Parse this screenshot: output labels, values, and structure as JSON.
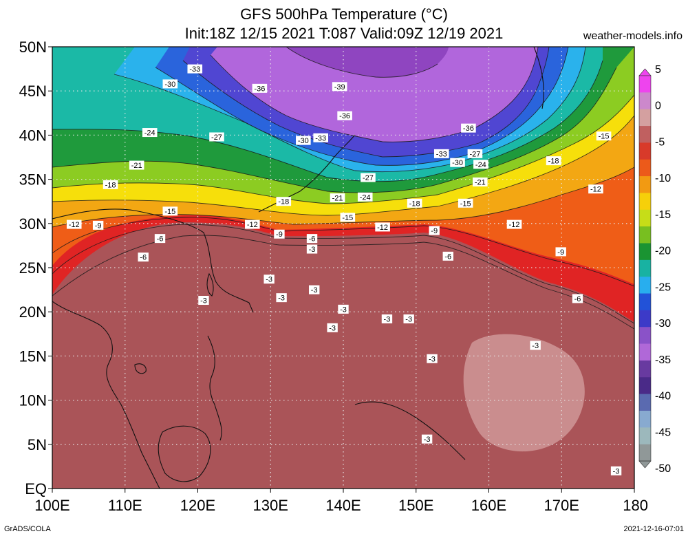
{
  "header": {
    "title_line1": "GFS 500hPa Temperature (°C)",
    "title_line2": "Init:18Z 12/15 2021 T:087 Valid:09Z 12/19 2021",
    "site": "weather-models.info"
  },
  "footer": {
    "credit": "GrADS/COLA",
    "timestamp": "2021-12-16-07:01"
  },
  "axes": {
    "lat_labels": [
      "50N",
      "45N",
      "40N",
      "35N",
      "30N",
      "25N",
      "20N",
      "15N",
      "10N",
      "5N",
      "EQ"
    ],
    "lon_labels": [
      "100E",
      "110E",
      "120E",
      "130E",
      "140E",
      "150E",
      "160E",
      "170E",
      "180"
    ]
  },
  "colorbar": {
    "labels": [
      "5",
      "0",
      "-5",
      "-10",
      "-15",
      "-20",
      "-25",
      "-30",
      "-35",
      "-40",
      "-45",
      "-50"
    ],
    "colors": [
      "#ee44ee",
      "#cc88cc",
      "#d4a0a0",
      "#c06060",
      "#d83a2a",
      "#ec5a1a",
      "#f29a12",
      "#f6d00a",
      "#c6dd18",
      "#78bf20",
      "#1a9432",
      "#18b2a2",
      "#28aeee",
      "#2252d8",
      "#3c3ac8",
      "#8a52c8",
      "#b068d8",
      "#683aa0",
      "#4a2a88",
      "#5a6ab0",
      "#88aad0",
      "#9cb8bc",
      "#909898"
    ]
  },
  "map": {
    "fields": [
      {
        "name": "temp-0",
        "color": "#d4a0a0"
      },
      {
        "name": "temp-minus3",
        "color": "#aa5458"
      },
      {
        "name": "temp-minus6",
        "color": "#e02424"
      },
      {
        "name": "temp-minus9",
        "color": "#ef5d17"
      },
      {
        "name": "temp-minus12",
        "color": "#f3a713"
      },
      {
        "name": "temp-minus15",
        "color": "#f6df0b"
      },
      {
        "name": "temp-minus18",
        "color": "#8ccc22"
      },
      {
        "name": "temp-minus21",
        "color": "#1f9a3c"
      },
      {
        "name": "temp-minus24",
        "color": "#1bb9a6"
      },
      {
        "name": "temp-minus27",
        "color": "#2ab2ec"
      },
      {
        "name": "temp-minus30",
        "color": "#2a64dc"
      },
      {
        "name": "temp-minus33",
        "color": "#5046d2"
      },
      {
        "name": "temp-minus36",
        "color": "#b166dc"
      },
      {
        "name": "temp-minus39",
        "color": "#8f45c0"
      }
    ],
    "contour_labels": [
      {
        "text": "-33",
        "lon": 119.6,
        "lat": 47.5
      },
      {
        "text": "-30",
        "lon": 116.2,
        "lat": 45.8
      },
      {
        "text": "-36",
        "lon": 128.5,
        "lat": 45.3
      },
      {
        "text": "-39",
        "lon": 139.5,
        "lat": 45.5
      },
      {
        "text": "-36",
        "lon": 140.2,
        "lat": 42.2
      },
      {
        "text": "-36",
        "lon": 157.2,
        "lat": 40.8
      },
      {
        "text": "-24",
        "lon": 113.4,
        "lat": 40.3
      },
      {
        "text": "-27",
        "lon": 122.6,
        "lat": 39.8
      },
      {
        "text": "-30",
        "lon": 134.5,
        "lat": 39.4
      },
      {
        "text": "-33",
        "lon": 136.9,
        "lat": 39.7
      },
      {
        "text": "-33",
        "lon": 153.5,
        "lat": 37.9
      },
      {
        "text": "-27",
        "lon": 158.1,
        "lat": 37.9
      },
      {
        "text": "-30",
        "lon": 155.7,
        "lat": 36.9
      },
      {
        "text": "-24",
        "lon": 158.9,
        "lat": 36.7
      },
      {
        "text": "-18",
        "lon": 168.9,
        "lat": 37.1
      },
      {
        "text": "-15",
        "lon": 175.8,
        "lat": 39.9
      },
      {
        "text": "-21",
        "lon": 111.6,
        "lat": 36.6
      },
      {
        "text": "-18",
        "lon": 108.0,
        "lat": 34.4
      },
      {
        "text": "-27",
        "lon": 143.4,
        "lat": 35.2
      },
      {
        "text": "-21",
        "lon": 158.8,
        "lat": 34.7
      },
      {
        "text": "-24",
        "lon": 143.0,
        "lat": 33.0
      },
      {
        "text": "-21",
        "lon": 139.2,
        "lat": 32.9
      },
      {
        "text": "-18",
        "lon": 131.8,
        "lat": 32.5
      },
      {
        "text": "-18",
        "lon": 149.8,
        "lat": 32.3
      },
      {
        "text": "-15",
        "lon": 156.8,
        "lat": 32.3
      },
      {
        "text": "-12",
        "lon": 174.7,
        "lat": 33.9
      },
      {
        "text": "-15",
        "lon": 116.2,
        "lat": 31.4
      },
      {
        "text": "-15",
        "lon": 140.6,
        "lat": 30.7
      },
      {
        "text": "-12",
        "lon": 103.0,
        "lat": 29.9
      },
      {
        "text": "-9",
        "lon": 106.3,
        "lat": 29.8
      },
      {
        "text": "-12",
        "lon": 127.5,
        "lat": 29.9
      },
      {
        "text": "-12",
        "lon": 145.4,
        "lat": 29.6
      },
      {
        "text": "-12",
        "lon": 163.5,
        "lat": 29.9
      },
      {
        "text": "-9",
        "lon": 152.5,
        "lat": 29.2
      },
      {
        "text": "-9",
        "lon": 131.2,
        "lat": 28.8
      },
      {
        "text": "-6",
        "lon": 114.8,
        "lat": 28.3
      },
      {
        "text": "-6",
        "lon": 135.7,
        "lat": 28.3
      },
      {
        "text": "-3",
        "lon": 135.7,
        "lat": 27.1
      },
      {
        "text": "-6",
        "lon": 112.5,
        "lat": 26.2
      },
      {
        "text": "-6",
        "lon": 154.4,
        "lat": 26.3
      },
      {
        "text": "-9",
        "lon": 169.9,
        "lat": 26.8
      },
      {
        "text": "-3",
        "lon": 129.8,
        "lat": 23.7
      },
      {
        "text": "-3",
        "lon": 136.0,
        "lat": 22.5
      },
      {
        "text": "-3",
        "lon": 120.8,
        "lat": 21.3
      },
      {
        "text": "-3",
        "lon": 131.5,
        "lat": 21.6
      },
      {
        "text": "-6",
        "lon": 172.2,
        "lat": 21.5
      },
      {
        "text": "-3",
        "lon": 140.0,
        "lat": 20.3
      },
      {
        "text": "-3",
        "lon": 146.0,
        "lat": 19.2
      },
      {
        "text": "-3",
        "lon": 149.0,
        "lat": 19.2
      },
      {
        "text": "-3",
        "lon": 138.5,
        "lat": 18.2
      },
      {
        "text": "-3",
        "lon": 166.4,
        "lat": 16.2
      },
      {
        "text": "-3",
        "lon": 152.2,
        "lat": 14.7
      },
      {
        "text": "-3",
        "lon": 151.5,
        "lat": 5.6
      },
      {
        "text": "-3",
        "lon": 177.5,
        "lat": 2.0
      }
    ]
  }
}
